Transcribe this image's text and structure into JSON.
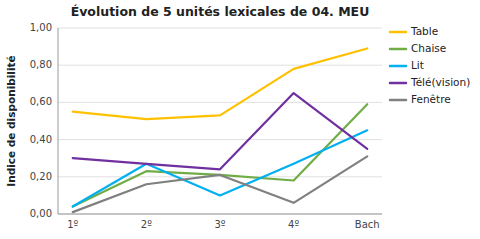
{
  "chart_data": {
    "type": "line",
    "title": "Évolution de 5 unités lexicales de 04. MEU",
    "ylabel": "Indice de disponibilité",
    "categories": [
      "1º",
      "2º",
      "3º",
      "4º",
      "Bach"
    ],
    "series": [
      {
        "name": "Table",
        "color": "#FFC000",
        "values": [
          0.55,
          0.51,
          0.53,
          0.78,
          0.89
        ]
      },
      {
        "name": "Chaise",
        "color": "#70AD47",
        "values": [
          0.04,
          0.23,
          0.21,
          0.18,
          0.59
        ]
      },
      {
        "name": "Lit",
        "color": "#00B0F0",
        "values": [
          0.04,
          0.27,
          0.1,
          0.27,
          0.45
        ]
      },
      {
        "name": "Télé(vision)",
        "color": "#7030A0",
        "values": [
          0.3,
          0.27,
          0.24,
          0.65,
          0.35
        ]
      },
      {
        "name": "Fenêtre",
        "color": "#808080",
        "values": [
          0.01,
          0.16,
          0.21,
          0.06,
          0.31
        ]
      }
    ],
    "ylim": [
      0.0,
      1.0
    ],
    "yticks": [
      {
        "value": 0.0,
        "label": "0,00"
      },
      {
        "value": 0.2,
        "label": "0,20"
      },
      {
        "value": 0.4,
        "label": "0,40"
      },
      {
        "value": 0.6,
        "label": "0,60"
      },
      {
        "value": 0.8,
        "label": "0,80"
      },
      {
        "value": 1.0,
        "label": "1,00"
      }
    ],
    "grid": true,
    "legend": "right"
  }
}
